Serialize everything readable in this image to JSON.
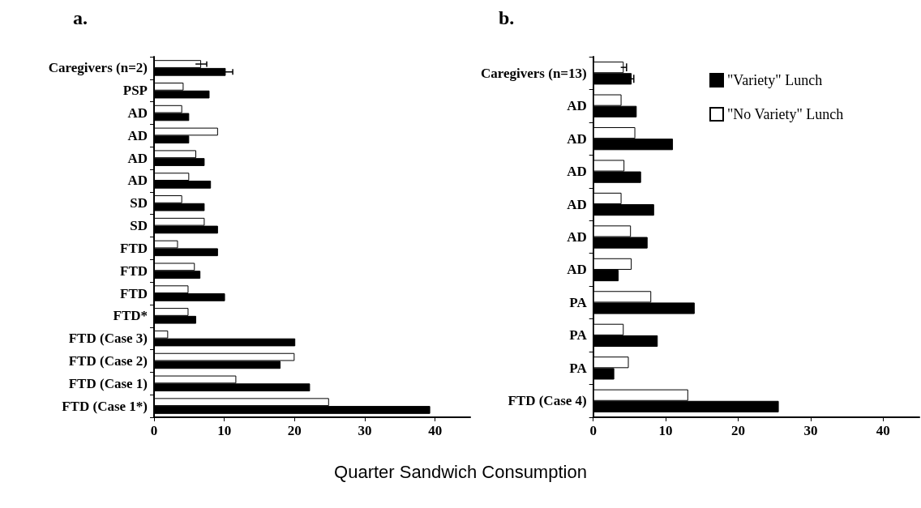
{
  "chart_data": [
    {
      "type": "bar",
      "orientation": "horizontal",
      "title": "a.",
      "xlabel": "Quarter Sandwich Consumption",
      "categories": [
        "Caregivers (n=2)",
        "PSP",
        "AD",
        "AD",
        "AD",
        "AD",
        "SD",
        "SD",
        "FTD",
        "FTD",
        "FTD",
        "FTD*",
        "FTD (Case 3)",
        "FTD (Case 2)",
        "FTD (Case 1)",
        "FTD (Case 1*)"
      ],
      "series": [
        {
          "color": "#ffffff",
          "values": [
            6.7,
            4.2,
            4.0,
            9.1,
            6.0,
            5.0,
            4.0,
            7.2,
            3.4,
            5.8,
            4.9,
            4.9,
            2.0,
            20.0,
            11.7,
            24.9
          ],
          "errors": [
            0.8,
            null,
            null,
            null,
            null,
            null,
            null,
            null,
            null,
            null,
            null,
            null,
            null,
            null,
            null,
            null
          ]
        },
        {
          "color": "#000000",
          "values": [
            10.2,
            7.9,
            5.0,
            5.0,
            7.2,
            8.1,
            7.2,
            9.1,
            9.1,
            6.6,
            10.1,
            6.0,
            20.1,
            18.0,
            22.2,
            39.3
          ],
          "errors": [
            1.0,
            null,
            null,
            null,
            null,
            null,
            null,
            null,
            null,
            null,
            null,
            null,
            null,
            null,
            null,
            null
          ]
        }
      ],
      "xlim": [
        0,
        45
      ],
      "xticks": [
        0,
        10,
        20,
        30,
        40
      ],
      "grid": false,
      "legend": false
    },
    {
      "type": "bar",
      "orientation": "horizontal",
      "title": "b.",
      "categories": [
        "Caregivers (n=13)",
        "AD",
        "AD",
        "AD",
        "AD",
        "AD",
        "AD",
        "PA",
        "PA",
        "PA",
        "FTD (Case 4)"
      ],
      "series": [
        {
          "name": "\"No Variety\" Lunch",
          "color": "#ffffff",
          "values": [
            4.2,
            3.9,
            5.8,
            4.3,
            3.9,
            5.2,
            5.3,
            8.0,
            4.2,
            4.9,
            13.1
          ],
          "errors": [
            0.4,
            null,
            null,
            null,
            null,
            null,
            null,
            null,
            null,
            null,
            null
          ]
        },
        {
          "name": "\"Variety\" Lunch",
          "color": "#000000",
          "values": [
            5.3,
            6.0,
            11.0,
            6.6,
            8.4,
            7.5,
            3.5,
            14.0,
            8.9,
            2.9,
            25.6
          ],
          "errors": [
            0.3,
            null,
            null,
            null,
            null,
            null,
            null,
            null,
            null,
            null,
            null
          ]
        }
      ],
      "xlim": [
        0,
        45
      ],
      "xticks": [
        0,
        10,
        20,
        30,
        40
      ],
      "grid": false,
      "legend": "top right"
    }
  ]
}
